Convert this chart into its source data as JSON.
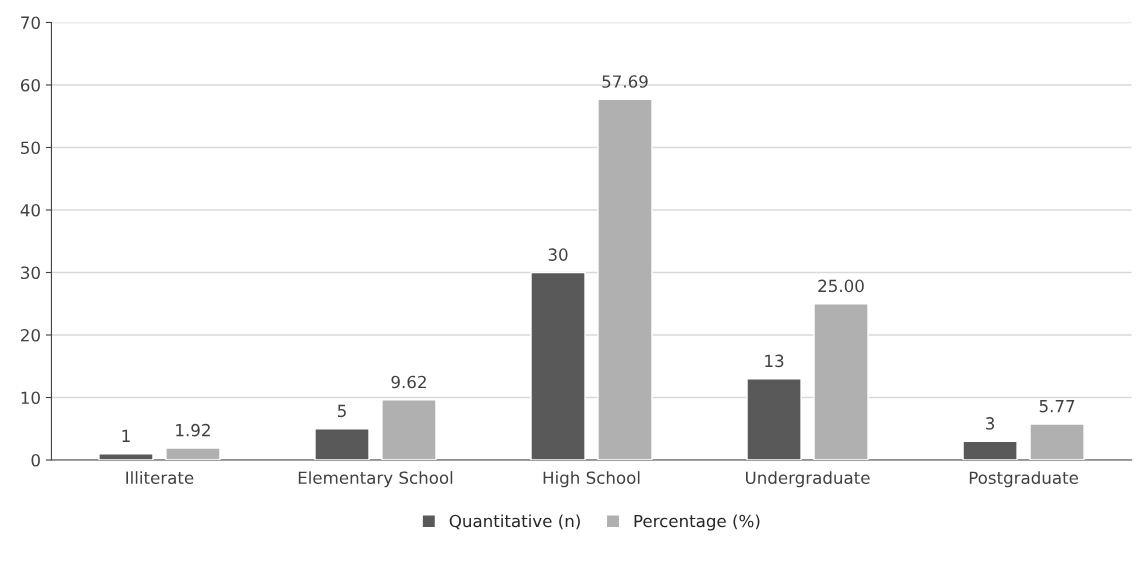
{
  "chart_data": {
    "type": "bar",
    "categories": [
      "Illiterate",
      "Elementary School",
      "High School",
      "Undergraduate",
      "Postgraduate"
    ],
    "series": [
      {
        "name": "Quantitative (n)",
        "color": "#595959",
        "values": [
          1,
          5,
          30,
          13,
          3
        ],
        "value_labels": [
          "1",
          "5",
          "30",
          "13",
          "3"
        ]
      },
      {
        "name": "Percentage (%)",
        "color": "#b0b0b0",
        "values": [
          1.92,
          9.62,
          57.69,
          25.0,
          5.77
        ],
        "value_labels": [
          "1.92",
          "9.62",
          "57.69",
          "25.00",
          "5.77"
        ]
      }
    ],
    "ylim": [
      0,
      70
    ],
    "yticks": [
      0,
      10,
      20,
      30,
      40,
      50,
      60,
      70
    ],
    "grid": "y",
    "legend": "bottom"
  }
}
